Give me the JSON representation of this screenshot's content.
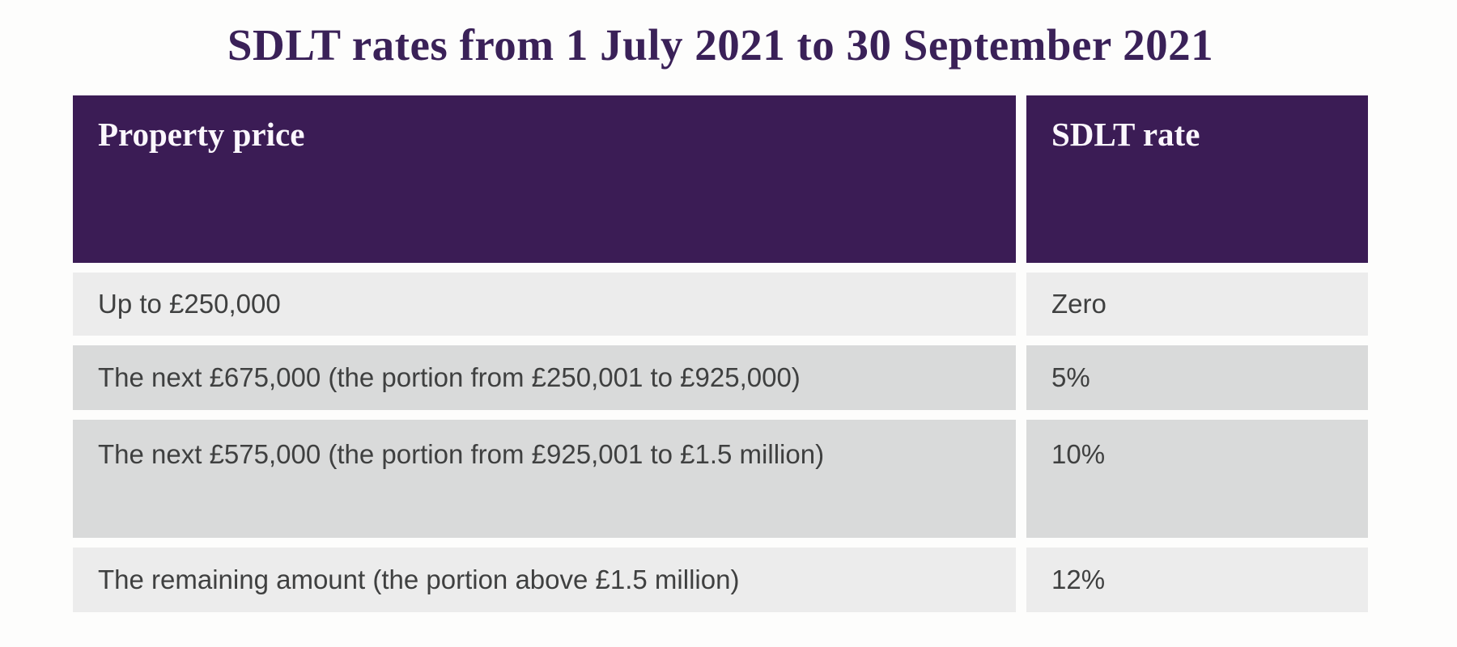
{
  "title": {
    "text": "SDLT rates from 1 July 2021 to 30 September 2021"
  },
  "table": {
    "header": {
      "columns": [
        {
          "label": "Property price"
        },
        {
          "label": "SDLT rate"
        }
      ]
    },
    "rows": [
      {
        "property_price": "Up to £250,000",
        "sdlt_rate": "Zero",
        "shade": "light"
      },
      {
        "property_price": "The next £675,000 (the portion from £250,001 to £925,000)",
        "sdlt_rate": "5%",
        "shade": "dark"
      },
      {
        "property_price": "The next £575,000 (the portion from £925,001 to £1.5 million)",
        "sdlt_rate": "10%",
        "shade": "dark"
      },
      {
        "property_price": "The remaining amount (the portion above £1.5 million)",
        "sdlt_rate": "12%",
        "shade": "light"
      }
    ]
  },
  "colors": {
    "title_text": "#3a2158",
    "header_background": "#3b1c55",
    "header_text": "#fbf7fd",
    "row_light": "#ececec",
    "row_dark": "#d9dada",
    "body_text": "#3f4040",
    "page_background": "#fdfdfc"
  },
  "chart_data": {
    "type": "table",
    "title": "SDLT rates from 1 July 2021 to 30 September 2021",
    "columns": [
      "Property price",
      "SDLT rate"
    ],
    "rows": [
      [
        "Up to £250,000",
        "Zero"
      ],
      [
        "The next £675,000 (the portion from £250,001 to £925,000)",
        "5%"
      ],
      [
        "The next £575,000 (the portion from £925,001 to £1.5 million)",
        "10%"
      ],
      [
        "The remaining amount (the portion above £1.5 million)",
        "12%"
      ]
    ],
    "legend_position": "none",
    "grid": false
  }
}
